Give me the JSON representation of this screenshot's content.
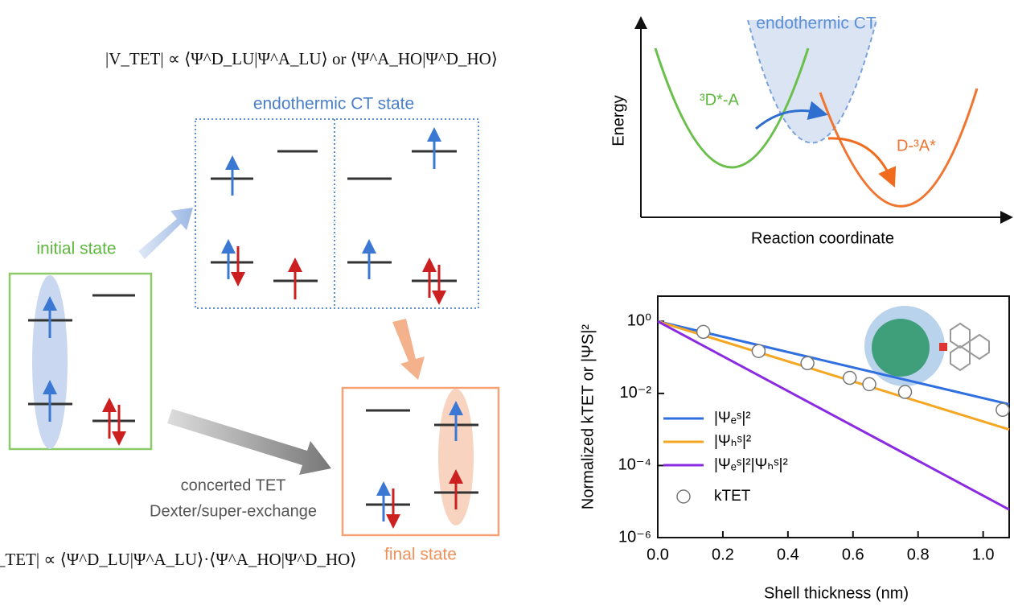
{
  "diagram": {
    "formula_top": "|V_TET| ∝ ⟨Ψ^D_LU|Ψ^A_LU⟩ or ⟨Ψ^A_HO|Ψ^D_HO⟩",
    "ct_state_label": "endothermic CT state",
    "initial_state_label": "initial state",
    "final_state_label": "final state",
    "mechanism": [
      "concerted TET",
      "Dexter/super-exchange"
    ],
    "formula_bottom": "|V_TET| ∝ ⟨Ψ^D_LU|Ψ^A_LU⟩·⟨Ψ^A_HO|Ψ^D_HO⟩",
    "energy_plot": {
      "y_label": "Energy",
      "x_label": "Reaction coordinate",
      "ct_label": "endothermic CT",
      "donor_label": "³D*-A",
      "acceptor_label": "D-³A*"
    }
  },
  "chart_data": {
    "type": "line",
    "x_label": "Shell thickness (nm)",
    "y_label": "Normalized kTET or |ΨS|²",
    "y_scale": "log",
    "xlim": [
      0,
      1.08
    ],
    "ylim": [
      1e-06,
      5
    ],
    "xticks": [
      {
        "value": 0,
        "label": "0.0"
      },
      0.2,
      0.4,
      0.6,
      0.8,
      {
        "value": 1,
        "label": "1.0"
      }
    ],
    "yticks": [
      {
        "value": 1e-06,
        "label": "10⁻⁶"
      },
      {
        "value": 0.0001,
        "label": "10⁻⁴"
      },
      {
        "value": 0.01,
        "label": "10⁻²"
      },
      {
        "value": 1,
        "label": "10⁰"
      }
    ],
    "legend": "lower left",
    "series": [
      {
        "name": "|Ψₑˢ|²",
        "color": "#2f6fe0",
        "x": [
          0,
          1.08
        ],
        "values": [
          1,
          0.005
        ]
      },
      {
        "name": "|Ψₕˢ|²",
        "color": "#f5a623",
        "x": [
          0,
          1.08
        ],
        "values": [
          1,
          0.001
        ]
      },
      {
        "name": "|Ψₑˢ|²|Ψₕˢ|²",
        "color": "#8a2be2",
        "x": [
          0,
          1.08
        ],
        "values": [
          1,
          6e-06
        ]
      },
      {
        "name": "kTET",
        "type": "scatter",
        "color": "#777777",
        "x": [
          0.14,
          0.31,
          0.46,
          0.59,
          0.65,
          0.76,
          1.06
        ],
        "values": [
          0.51,
          0.15,
          0.069,
          0.027,
          0.018,
          0.011,
          0.0035
        ]
      }
    ]
  }
}
